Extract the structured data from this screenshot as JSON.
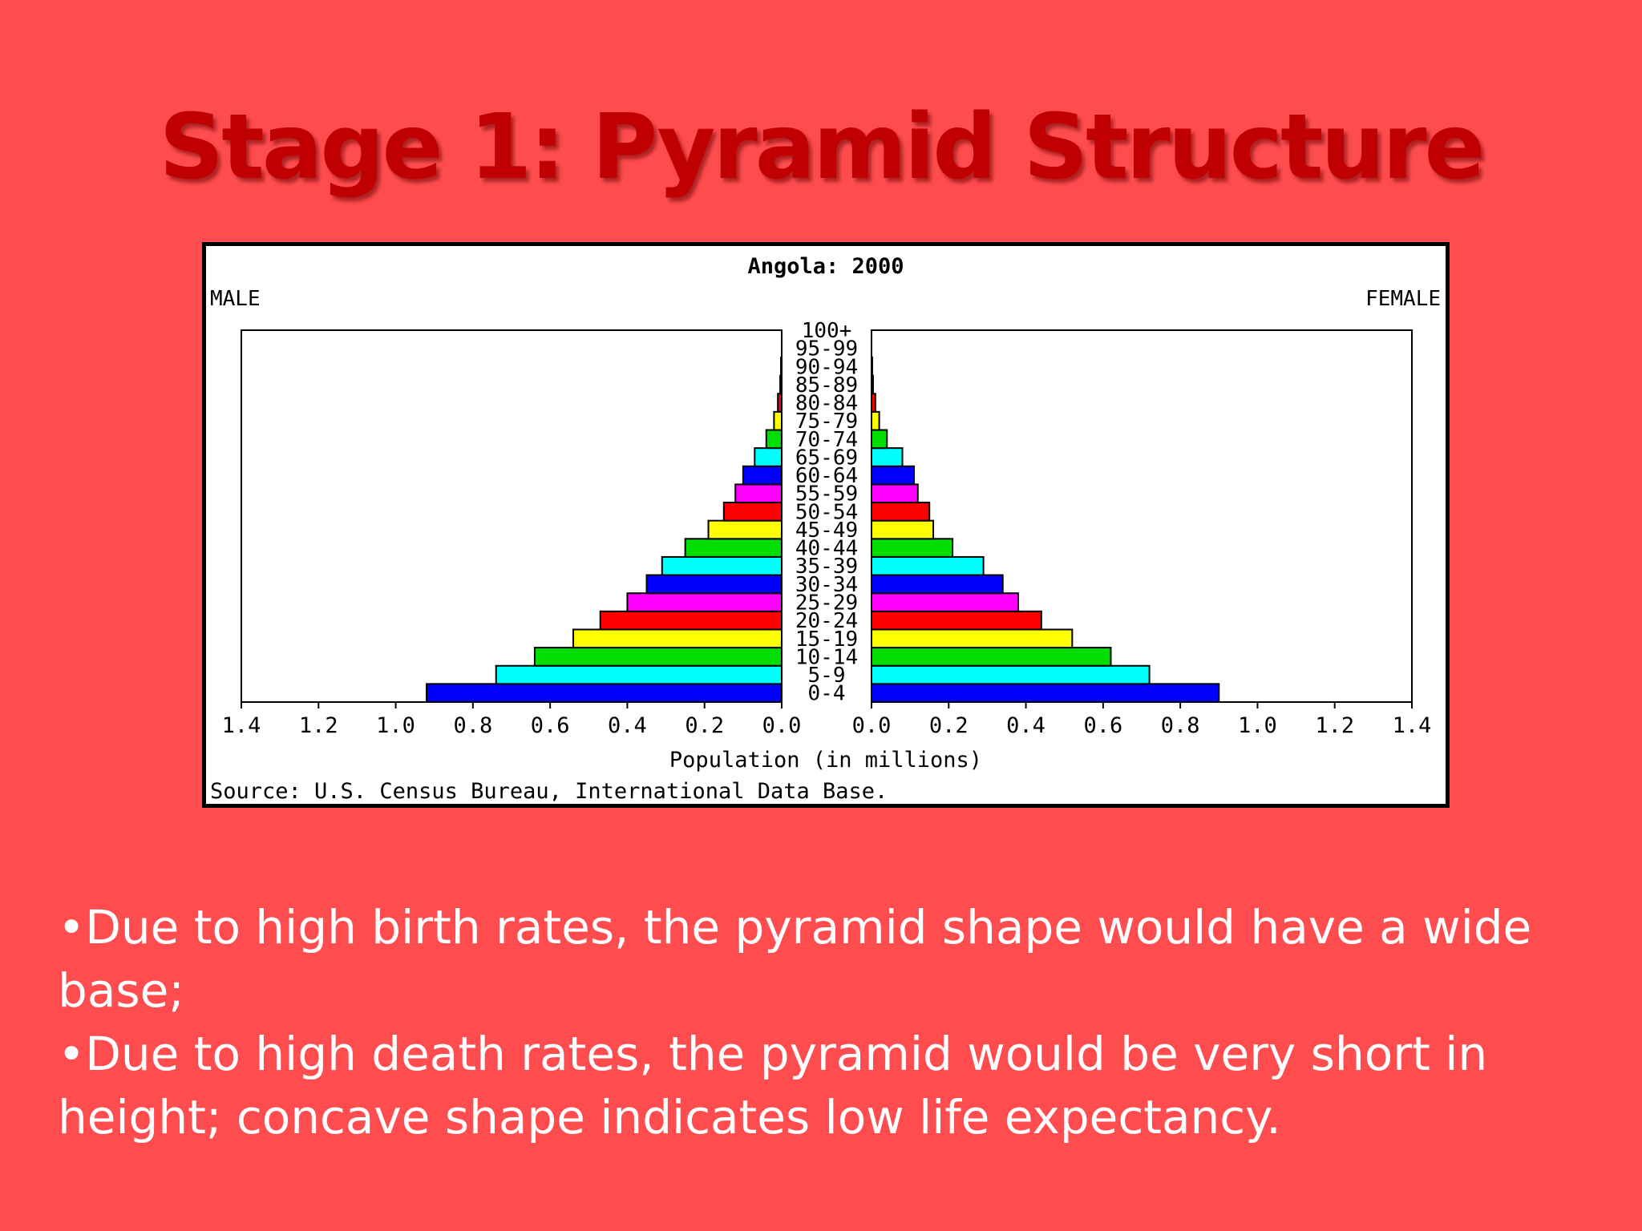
{
  "slide": {
    "title": "Stage 1: Pyramid Structure",
    "bullets": [
      "•Due to high birth  rates, the pyramid shape would have a wide base;",
      "•Due to high death rates, the pyramid would be very short in height; concave shape indicates low life expectancy."
    ]
  },
  "colors": {
    "background": "#ff4d4f",
    "title": "#c00000",
    "bar_cycle": [
      "#0000ff",
      "#00ffff",
      "#00dd00",
      "#ffff00",
      "#ff0000",
      "#ff00ff"
    ]
  },
  "chart_data": {
    "type": "bar",
    "orientation": "horizontal-pyramid",
    "title": "Angola: 2000",
    "left_label": "MALE",
    "right_label": "FEMALE",
    "xlabel": "Population (in millions)",
    "source": "Source: U.S. Census Bureau, International Data Base.",
    "xlim": [
      0,
      1.4
    ],
    "x_ticks": [
      "0.0",
      "0.2",
      "0.4",
      "0.6",
      "0.8",
      "1.0",
      "1.2",
      "1.4"
    ],
    "categories": [
      "0-4",
      "5-9",
      "10-14",
      "15-19",
      "20-24",
      "25-29",
      "30-34",
      "35-39",
      "40-44",
      "45-49",
      "50-54",
      "55-59",
      "60-64",
      "65-69",
      "70-74",
      "75-79",
      "80-84",
      "85-89",
      "90-94",
      "95-99",
      "100+"
    ],
    "series": [
      {
        "name": "MALE",
        "values": [
          0.92,
          0.74,
          0.64,
          0.54,
          0.47,
          0.4,
          0.35,
          0.31,
          0.25,
          0.19,
          0.15,
          0.12,
          0.1,
          0.07,
          0.04,
          0.02,
          0.01,
          0.004,
          0.002,
          0.001,
          0.0
        ]
      },
      {
        "name": "FEMALE",
        "values": [
          0.9,
          0.72,
          0.62,
          0.52,
          0.44,
          0.38,
          0.34,
          0.29,
          0.21,
          0.16,
          0.15,
          0.12,
          0.11,
          0.08,
          0.04,
          0.02,
          0.01,
          0.004,
          0.002,
          0.001,
          0.0
        ]
      }
    ]
  }
}
